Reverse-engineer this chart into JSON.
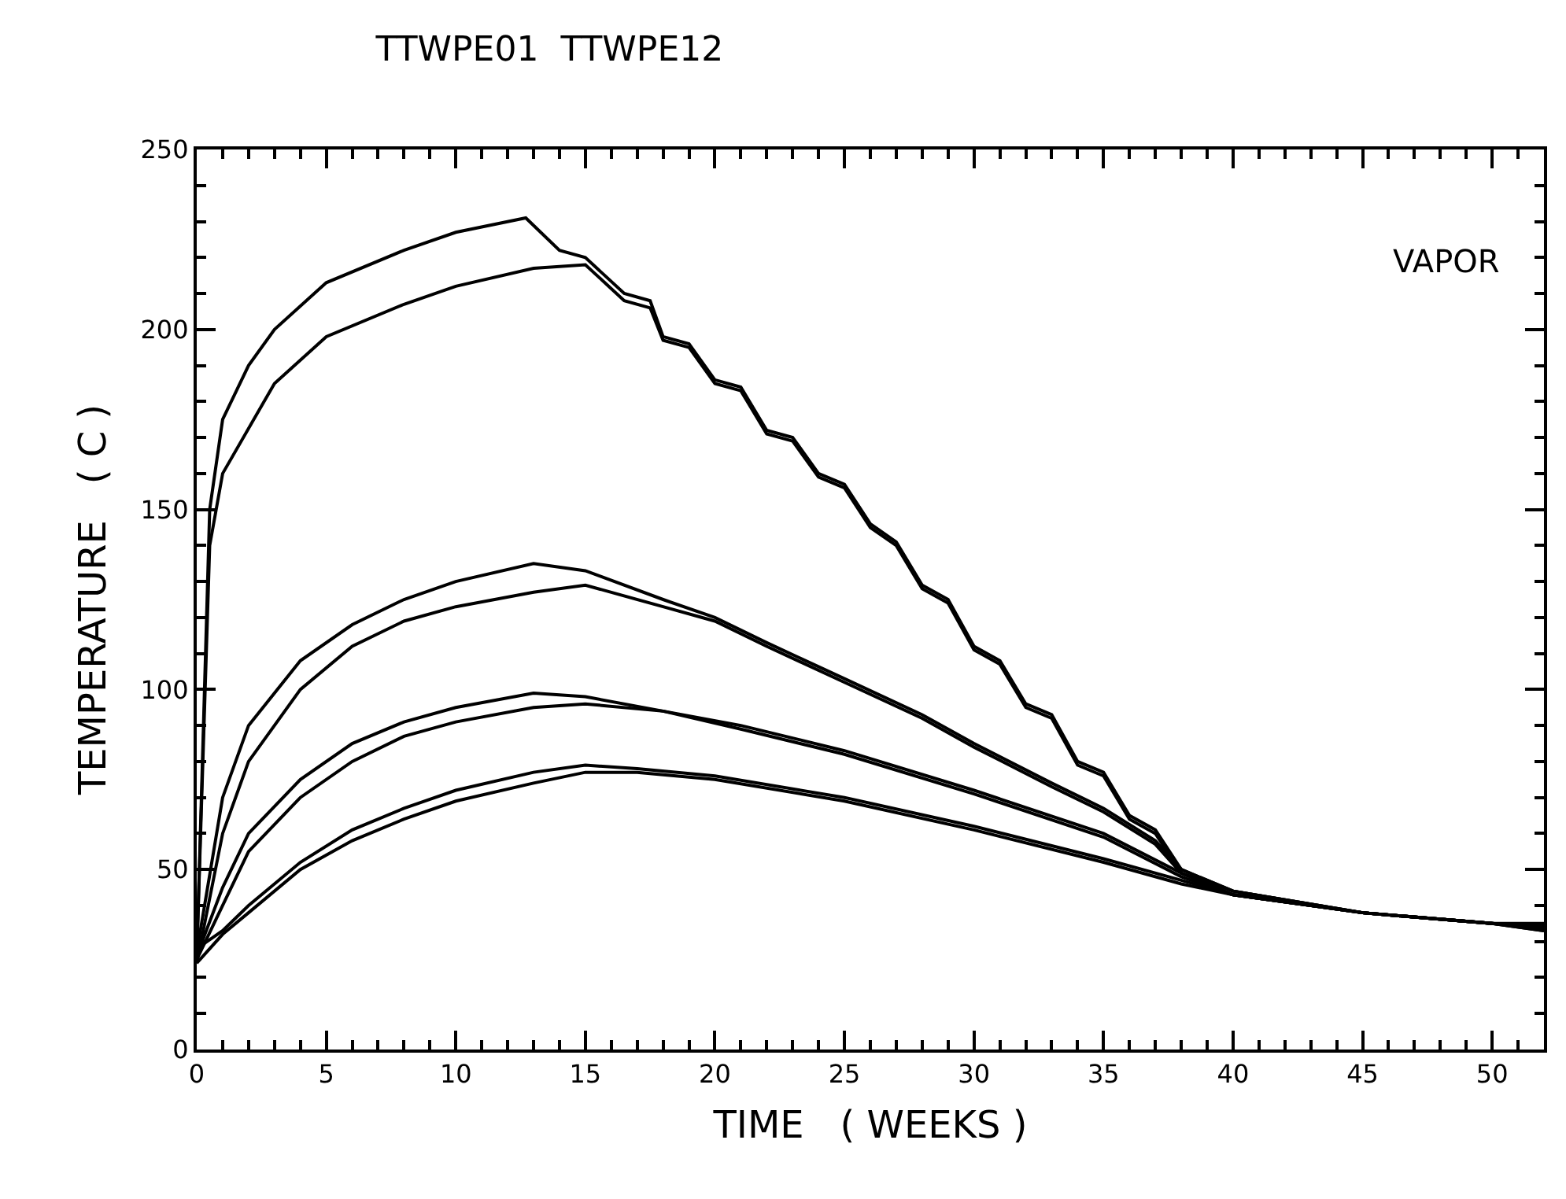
{
  "chart_data": {
    "type": "line",
    "title": "TTWPE01  TTWPE12",
    "xlabel": "TIME   ( WEEKS )",
    "ylabel": "TEMPERATURE   ( C )",
    "annotations": [
      "VAPOR"
    ],
    "xlim": [
      0,
      52
    ],
    "xticks": [
      0,
      5,
      10,
      15,
      20,
      25,
      30,
      35,
      40,
      45,
      50
    ],
    "ylim": [
      0,
      250
    ],
    "yticks": [
      0,
      50,
      100,
      150,
      200,
      250
    ],
    "marker": "none",
    "line_style": "solid",
    "series": [
      {
        "color": "#000000",
        "x": [
          0,
          0.5,
          1,
          2,
          3,
          5,
          8,
          10,
          12.7,
          14,
          15,
          16.5,
          17.5,
          18,
          19,
          20,
          21,
          22,
          23,
          24,
          25,
          26,
          27,
          28,
          29,
          30,
          31,
          32,
          33,
          34,
          35,
          36,
          37,
          38,
          40,
          45,
          50,
          52
        ],
        "values": [
          25,
          150,
          175,
          190,
          200,
          213,
          222,
          227,
          231,
          222,
          220,
          210,
          208,
          198,
          196,
          186,
          184,
          172,
          170,
          160,
          157,
          146,
          141,
          129,
          125,
          112,
          108,
          96,
          93,
          80,
          77,
          65,
          61,
          50,
          44,
          38,
          35,
          34
        ]
      },
      {
        "color": "#000000",
        "x": [
          0,
          0.5,
          1,
          3,
          5,
          8,
          10,
          13,
          15,
          16.5,
          17.5,
          18,
          19,
          20,
          21,
          22,
          23,
          24,
          25,
          26,
          27,
          28,
          29,
          30,
          31,
          32,
          33,
          34,
          35,
          36,
          37,
          38,
          40,
          45,
          50,
          52
        ],
        "values": [
          26,
          140,
          160,
          185,
          198,
          207,
          212,
          217,
          218,
          208,
          206,
          197,
          195,
          185,
          183,
          171,
          169,
          159,
          156,
          145,
          140,
          128,
          124,
          111,
          107,
          95,
          92,
          79,
          76,
          64,
          60,
          49,
          44,
          38,
          35,
          33
        ]
      },
      {
        "color": "#000000",
        "x": [
          0,
          1,
          2,
          4,
          6,
          8,
          10,
          13,
          15,
          18,
          20,
          22,
          25,
          28,
          30,
          33,
          35,
          37,
          38,
          40,
          45,
          50,
          52
        ],
        "values": [
          27,
          70,
          90,
          108,
          118,
          125,
          130,
          135,
          133,
          125,
          120,
          113,
          103,
          93,
          85,
          74,
          67,
          58,
          50,
          44,
          38,
          35,
          34
        ]
      },
      {
        "color": "#000000",
        "x": [
          0,
          1,
          2,
          4,
          6,
          8,
          10,
          13,
          15,
          18,
          20,
          22,
          25,
          28,
          30,
          33,
          35,
          37,
          38,
          40,
          45,
          50,
          52
        ],
        "values": [
          24,
          60,
          80,
          100,
          112,
          119,
          123,
          127,
          129,
          123,
          119,
          112,
          102,
          92,
          84,
          73,
          66,
          57,
          49,
          43,
          38,
          35,
          33
        ]
      },
      {
        "color": "#000000",
        "x": [
          0,
          1,
          2,
          4,
          6,
          8,
          10,
          13,
          15,
          18,
          21,
          25,
          30,
          35,
          38,
          40,
          45,
          50,
          52
        ],
        "values": [
          26,
          45,
          60,
          75,
          85,
          91,
          95,
          99,
          98,
          94,
          90,
          83,
          72,
          60,
          49,
          43,
          38,
          35,
          34.5
        ]
      },
      {
        "color": "#000000",
        "x": [
          0,
          1,
          2,
          4,
          6,
          8,
          10,
          13,
          15,
          18,
          21,
          25,
          30,
          35,
          38,
          40,
          45,
          50,
          52
        ],
        "values": [
          25,
          40,
          55,
          70,
          80,
          87,
          91,
          95,
          96,
          94,
          89,
          82,
          71,
          59,
          48,
          43,
          38,
          35,
          33.5
        ]
      },
      {
        "color": "#000000",
        "x": [
          0,
          1,
          2,
          4,
          6,
          8,
          10,
          13,
          15,
          17,
          20,
          25,
          30,
          35,
          38,
          40,
          45,
          50,
          52
        ],
        "values": [
          28,
          33,
          40,
          52,
          61,
          67,
          72,
          77,
          79,
          78,
          76,
          70,
          62,
          53,
          47,
          43,
          38,
          35,
          35
        ]
      },
      {
        "color": "#000000",
        "x": [
          0,
          1,
          2,
          4,
          6,
          8,
          10,
          13,
          15,
          17,
          20,
          25,
          30,
          35,
          38,
          40,
          45,
          50,
          52
        ],
        "values": [
          24,
          32,
          38,
          50,
          58,
          64,
          69,
          74,
          77,
          77,
          75,
          69,
          61,
          52,
          46,
          43,
          38,
          35,
          34.5
        ]
      }
    ]
  }
}
